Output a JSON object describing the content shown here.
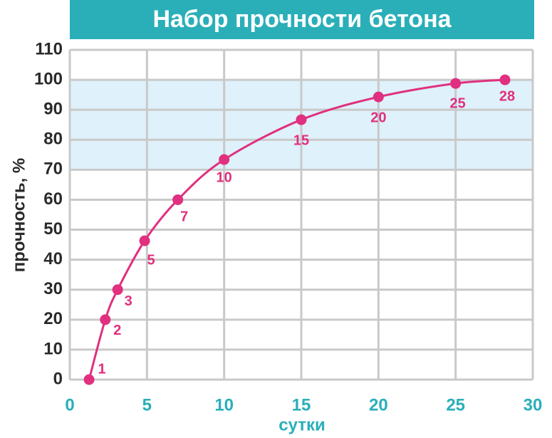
{
  "chart_data": {
    "type": "line",
    "title": "Набор прочности бетона",
    "x_label": "сутки",
    "y_label": "прочность, %",
    "x": [
      1.25,
      2.3,
      3.1,
      4.85,
      7,
      10,
      15,
      20,
      25,
      28.2
    ],
    "point_labels": [
      "1",
      "2",
      "3",
      "5",
      "7",
      "10",
      "15",
      "20",
      "25",
      "28"
    ],
    "series": [
      {
        "name": "прочность",
        "color": "#e0307f",
        "values": [
          0,
          20,
          30,
          46.3,
          60,
          73.4,
          86.7,
          94.3,
          98.8,
          100
        ]
      }
    ],
    "highlight_range": [
      70,
      100
    ],
    "highlight_color": "#dff1fb",
    "title_color": "#2aafb9",
    "xlim": [
      0,
      30
    ],
    "xticks": [
      0,
      5,
      10,
      15,
      20,
      25,
      30
    ],
    "ylim": [
      0,
      110
    ],
    "yticks": [
      0,
      10,
      20,
      30,
      40,
      50,
      60,
      70,
      80,
      90,
      100,
      110
    ],
    "grid": true
  }
}
